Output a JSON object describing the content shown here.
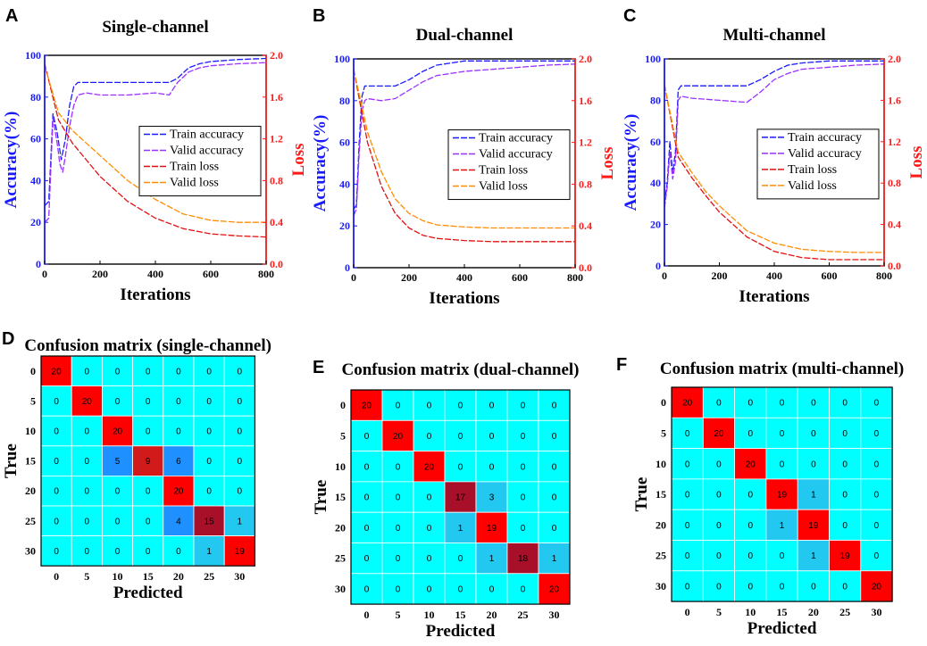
{
  "figure": {
    "layout": "2 rows x 3 panels",
    "panel_letters": [
      "A",
      "B",
      "C",
      "D",
      "E",
      "F"
    ]
  },
  "chart_data": [
    {
      "panel": "A",
      "type": "line",
      "title": "Single-channel",
      "xlabel": "Iterations",
      "ylabel": "Accuracy(%)",
      "y2label": "Loss",
      "xlim": [
        0,
        800
      ],
      "ylim": [
        0,
        100
      ],
      "y2lim": [
        0,
        2.0
      ],
      "xticks": [
        "0",
        "200",
        "400",
        "600",
        "800"
      ],
      "yticks": [
        "0",
        "20",
        "40",
        "60",
        "80",
        "100"
      ],
      "y2ticks": [
        "0.0",
        "0.4",
        "0.8",
        "1.2",
        "1.6",
        "2.0"
      ],
      "legend": "center-right",
      "series": [
        {
          "name": "Train accuracy",
          "axis": "left",
          "color": "#1a1aff",
          "dash": "long",
          "x": [
            0,
            15,
            30,
            45,
            60,
            75,
            90,
            105,
            120,
            200,
            300,
            400,
            450,
            480,
            520,
            560,
            600,
            700,
            800
          ],
          "y": [
            28,
            30,
            72,
            63,
            50,
            60,
            76,
            85,
            87,
            87,
            87,
            87,
            87,
            89,
            94,
            96,
            97,
            98,
            98.5
          ]
        },
        {
          "name": "Valid accuracy",
          "axis": "left",
          "color": "#9b30ff",
          "dash": "long",
          "x": [
            0,
            15,
            30,
            45,
            55,
            65,
            75,
            90,
            105,
            120,
            150,
            200,
            300,
            400,
            450,
            480,
            520,
            560,
            600,
            700,
            800
          ],
          "y": [
            20,
            22,
            70,
            58,
            48,
            44,
            52,
            66,
            76,
            81,
            82,
            81,
            81,
            82,
            81,
            87,
            92,
            94,
            95,
            96,
            96.5
          ]
        },
        {
          "name": "Train loss",
          "axis": "right",
          "color": "#e01010",
          "dash": "long",
          "x": [
            0,
            50,
            100,
            150,
            200,
            300,
            400,
            500,
            600,
            700,
            800
          ],
          "y": [
            1.92,
            1.38,
            1.16,
            1.0,
            0.84,
            0.6,
            0.44,
            0.34,
            0.29,
            0.27,
            0.26
          ]
        },
        {
          "name": "Valid loss",
          "axis": "right",
          "color": "#ff8c00",
          "dash": "long",
          "x": [
            0,
            50,
            100,
            150,
            200,
            300,
            400,
            500,
            600,
            700,
            800
          ],
          "y": [
            1.9,
            1.45,
            1.28,
            1.16,
            1.04,
            0.8,
            0.62,
            0.48,
            0.42,
            0.4,
            0.4
          ]
        }
      ]
    },
    {
      "panel": "B",
      "type": "line",
      "title": "Dual-channel",
      "xlabel": "Iterations",
      "ylabel": "Accuracy(%)",
      "y2label": "Loss",
      "xlim": [
        0,
        800
      ],
      "ylim": [
        0,
        100
      ],
      "y2lim": [
        0,
        2.0
      ],
      "xticks": [
        "0",
        "200",
        "400",
        "600",
        "800"
      ],
      "yticks": [
        "0",
        "20",
        "40",
        "60",
        "80",
        "100"
      ],
      "y2ticks": [
        "0.0",
        "0.4",
        "0.8",
        "1.2",
        "1.6",
        "2.0"
      ],
      "legend": "center-right",
      "series": [
        {
          "name": "Train accuracy",
          "axis": "left",
          "color": "#1a1aff",
          "dash": "long",
          "x": [
            0,
            10,
            20,
            30,
            40,
            50,
            100,
            150,
            200,
            250,
            300,
            350,
            400,
            500,
            600,
            700,
            800
          ],
          "y": [
            28,
            30,
            60,
            82,
            87,
            87,
            87,
            87,
            90,
            94,
            97,
            98,
            99,
            99,
            99,
            99,
            99
          ]
        },
        {
          "name": "Valid accuracy",
          "axis": "left",
          "color": "#9b30ff",
          "dash": "long",
          "x": [
            0,
            10,
            20,
            30,
            40,
            50,
            100,
            150,
            200,
            250,
            300,
            350,
            400,
            500,
            600,
            700,
            800
          ],
          "y": [
            25,
            28,
            55,
            75,
            80,
            81,
            80,
            81,
            85,
            89,
            92,
            93,
            94,
            95,
            96,
            97,
            97.5
          ]
        },
        {
          "name": "Train loss",
          "axis": "right",
          "color": "#e01010",
          "dash": "long",
          "x": [
            0,
            50,
            100,
            150,
            200,
            250,
            300,
            400,
            500,
            600,
            700,
            800
          ],
          "y": [
            1.9,
            1.2,
            0.78,
            0.52,
            0.38,
            0.31,
            0.28,
            0.26,
            0.25,
            0.25,
            0.25,
            0.25
          ]
        },
        {
          "name": "Valid loss",
          "axis": "right",
          "color": "#ff8c00",
          "dash": "long",
          "x": [
            0,
            50,
            100,
            150,
            200,
            250,
            300,
            400,
            500,
            600,
            700,
            800
          ],
          "y": [
            1.9,
            1.3,
            0.92,
            0.66,
            0.52,
            0.45,
            0.41,
            0.39,
            0.38,
            0.38,
            0.38,
            0.38
          ]
        }
      ]
    },
    {
      "panel": "C",
      "type": "line",
      "title": "Multi-channel",
      "xlabel": "Iterations",
      "ylabel": "Accuracy(%)",
      "y2label": "Loss",
      "xlim": [
        0,
        800
      ],
      "ylim": [
        0,
        100
      ],
      "y2lim": [
        0,
        2.0
      ],
      "xticks": [
        "0",
        "200",
        "400",
        "600",
        "800"
      ],
      "yticks": [
        "0",
        "20",
        "40",
        "60",
        "80",
        "100"
      ],
      "y2ticks": [
        "0.0",
        "0.4",
        "0.8",
        "1.2",
        "1.6",
        "2.0"
      ],
      "legend": "center-right",
      "series": [
        {
          "name": "Train accuracy",
          "axis": "left",
          "color": "#1a1aff",
          "dash": "long",
          "x": [
            0,
            10,
            20,
            30,
            40,
            50,
            60,
            100,
            200,
            300,
            350,
            400,
            450,
            500,
            600,
            700,
            800
          ],
          "y": [
            30,
            40,
            60,
            45,
            55,
            85,
            87,
            87,
            87,
            87,
            90,
            94,
            97,
            98,
            99,
            99,
            99
          ]
        },
        {
          "name": "Valid accuracy",
          "axis": "left",
          "color": "#9b30ff",
          "dash": "long",
          "x": [
            0,
            10,
            20,
            30,
            40,
            50,
            60,
            100,
            200,
            300,
            350,
            400,
            450,
            500,
            600,
            700,
            800
          ],
          "y": [
            28,
            38,
            55,
            42,
            50,
            80,
            82,
            81,
            80,
            79,
            84,
            90,
            93,
            95,
            96,
            97,
            97.5
          ]
        },
        {
          "name": "Train loss",
          "axis": "right",
          "color": "#e01010",
          "dash": "long",
          "x": [
            0,
            50,
            100,
            150,
            200,
            300,
            400,
            500,
            600,
            700,
            800
          ],
          "y": [
            1.75,
            1.05,
            0.85,
            0.68,
            0.52,
            0.28,
            0.14,
            0.08,
            0.06,
            0.06,
            0.06
          ]
        },
        {
          "name": "Valid loss",
          "axis": "right",
          "color": "#ff8c00",
          "dash": "long",
          "x": [
            0,
            50,
            100,
            150,
            200,
            300,
            400,
            500,
            600,
            700,
            800
          ],
          "y": [
            1.75,
            1.1,
            0.9,
            0.72,
            0.58,
            0.34,
            0.22,
            0.16,
            0.14,
            0.13,
            0.13
          ]
        }
      ]
    },
    {
      "panel": "D",
      "type": "heatmap",
      "title": "Confusion matrix (single-channel)",
      "xlabel": "Predicted",
      "ylabel": "True",
      "labels": [
        "0",
        "5",
        "10",
        "15",
        "20",
        "25",
        "30"
      ],
      "matrix": [
        [
          20,
          0,
          0,
          0,
          0,
          0,
          0
        ],
        [
          0,
          20,
          0,
          0,
          0,
          0,
          0
        ],
        [
          0,
          0,
          20,
          0,
          0,
          0,
          0
        ],
        [
          0,
          0,
          5,
          9,
          6,
          0,
          0
        ],
        [
          0,
          0,
          0,
          0,
          20,
          0,
          0
        ],
        [
          0,
          0,
          0,
          0,
          4,
          15,
          1
        ],
        [
          0,
          0,
          0,
          0,
          0,
          1,
          19
        ]
      ]
    },
    {
      "panel": "E",
      "type": "heatmap",
      "title": "Confusion matrix (dual-channel)",
      "xlabel": "Predicted",
      "ylabel": "True",
      "labels": [
        "0",
        "5",
        "10",
        "15",
        "20",
        "25",
        "30"
      ],
      "matrix": [
        [
          20,
          0,
          0,
          0,
          0,
          0,
          0
        ],
        [
          0,
          20,
          0,
          0,
          0,
          0,
          0
        ],
        [
          0,
          0,
          20,
          0,
          0,
          0,
          0
        ],
        [
          0,
          0,
          0,
          17,
          3,
          0,
          0
        ],
        [
          0,
          0,
          0,
          1,
          19,
          0,
          0
        ],
        [
          0,
          0,
          0,
          0,
          1,
          18,
          1
        ],
        [
          0,
          0,
          0,
          0,
          0,
          0,
          20
        ]
      ]
    },
    {
      "panel": "F",
      "type": "heatmap",
      "title": "Confusion matrix (multi-channel)",
      "xlabel": "Predicted",
      "ylabel": "True",
      "labels": [
        "0",
        "5",
        "10",
        "15",
        "20",
        "25",
        "30"
      ],
      "matrix": [
        [
          20,
          0,
          0,
          0,
          0,
          0,
          0
        ],
        [
          0,
          20,
          0,
          0,
          0,
          0,
          0
        ],
        [
          0,
          0,
          20,
          0,
          0,
          0,
          0
        ],
        [
          0,
          0,
          0,
          19,
          1,
          0,
          0
        ],
        [
          0,
          0,
          0,
          1,
          19,
          0,
          0
        ],
        [
          0,
          0,
          0,
          0,
          1,
          19,
          0
        ],
        [
          0,
          0,
          0,
          0,
          0,
          0,
          20
        ]
      ]
    }
  ],
  "colors": {
    "accuracy_axis": "#1a1aff",
    "loss_axis": "#ff1a1a",
    "cell_zero": "#00ffff",
    "cell_diag": "#ff0000",
    "cell_mid": "#1e90ff",
    "cell_low": "#22c8f0",
    "cell_mid_high": "#d21a1a",
    "cell_high": "#a80f28",
    "grid_line": "#ffffff"
  }
}
